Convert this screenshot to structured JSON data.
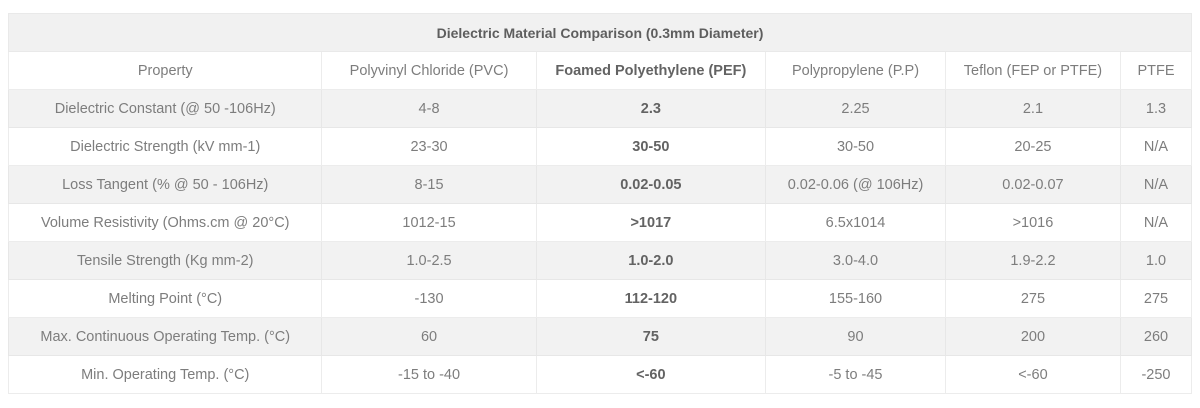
{
  "table": {
    "title": "Dielectric Material Comparison (0.3mm Diameter)",
    "bold_column_index": 2,
    "columns": [
      "Property",
      "Polyvinyl Chloride (PVC)",
      "Foamed Polyethylene (PEF)",
      "Polypropylene (P.P)",
      "Teflon (FEP or PTFE)",
      "PTFE"
    ],
    "rows": [
      {
        "property": "Dielectric Constant (@ 50 -106Hz)",
        "values": [
          "4-8",
          "2.3",
          "2.25",
          "2.1",
          "1.3"
        ]
      },
      {
        "property": "Dielectric Strength (kV mm-1)",
        "values": [
          "23-30",
          "30-50",
          "30-50",
          "20-25",
          "N/A"
        ]
      },
      {
        "property": "Loss Tangent (% @ 50 - 106Hz)",
        "values": [
          "8-15",
          "0.02-0.05",
          "0.02-0.06 (@ 106Hz)",
          "0.02-0.07",
          "N/A"
        ]
      },
      {
        "property": "Volume Resistivity (Ohms.cm @ 20°C)",
        "values": [
          "1012-15",
          ">1017",
          "6.5x1014",
          ">1016",
          "N/A"
        ]
      },
      {
        "property": "Tensile Strength (Kg mm-2)",
        "values": [
          "1.0-2.5",
          "1.0-2.0",
          "3.0-4.0",
          "1.9-2.2",
          "1.0"
        ]
      },
      {
        "property": "Melting Point (°C)",
        "values": [
          "-130",
          "112-120",
          "155-160",
          "275",
          "275"
        ]
      },
      {
        "property": "Max. Continuous Operating Temp. (°C)",
        "values": [
          "60",
          "75",
          "90",
          "200",
          "260"
        ]
      },
      {
        "property": "Min. Operating Temp. (°C)",
        "values": [
          "-15 to -40",
          "<-60",
          "-5 to -45",
          "<-60",
          "-250"
        ]
      }
    ],
    "colors": {
      "stripe_background": "#f2f2f2",
      "row_background": "#ffffff",
      "border": "#ececec",
      "text": "#7d7d7d",
      "title_text": "#5e5e5e",
      "bold_column_text": "#636363"
    }
  }
}
